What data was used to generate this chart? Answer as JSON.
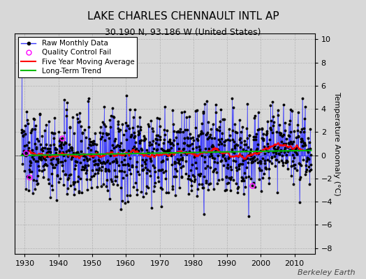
{
  "title": "LAKE CHARLES CHENNAULT INTL AP",
  "subtitle": "30.190 N, 93.186 W (United States)",
  "ylabel": "Temperature Anomaly (°C)",
  "watermark": "Berkeley Earth",
  "xlim": [
    1927,
    2016
  ],
  "ylim": [
    -8.5,
    10.5
  ],
  "yticks": [
    -8,
    -6,
    -4,
    -2,
    0,
    2,
    4,
    6,
    8,
    10
  ],
  "xticks": [
    1930,
    1940,
    1950,
    1960,
    1970,
    1980,
    1990,
    2000,
    2010
  ],
  "start_year": 1929.0,
  "num_months": 1032,
  "seed": 137,
  "background_color": "#d8d8d8",
  "plot_bg_color": "#d8d8d8",
  "raw_line_color": "#3333ff",
  "raw_marker_color": "#000000",
  "qc_fail_color": "#ff00ff",
  "moving_avg_color": "#ff0000",
  "trend_color": "#00bb00",
  "grid_color": "#aaaaaa",
  "title_fontsize": 11,
  "subtitle_fontsize": 9,
  "ylabel_fontsize": 8,
  "tick_fontsize": 8,
  "legend_fontsize": 7.5,
  "watermark_fontsize": 8,
  "noise_std": 1.8,
  "trend_total": 0.3,
  "moving_avg_window": 60,
  "qc_fail_indices": [
    15,
    28,
    145,
    820
  ]
}
